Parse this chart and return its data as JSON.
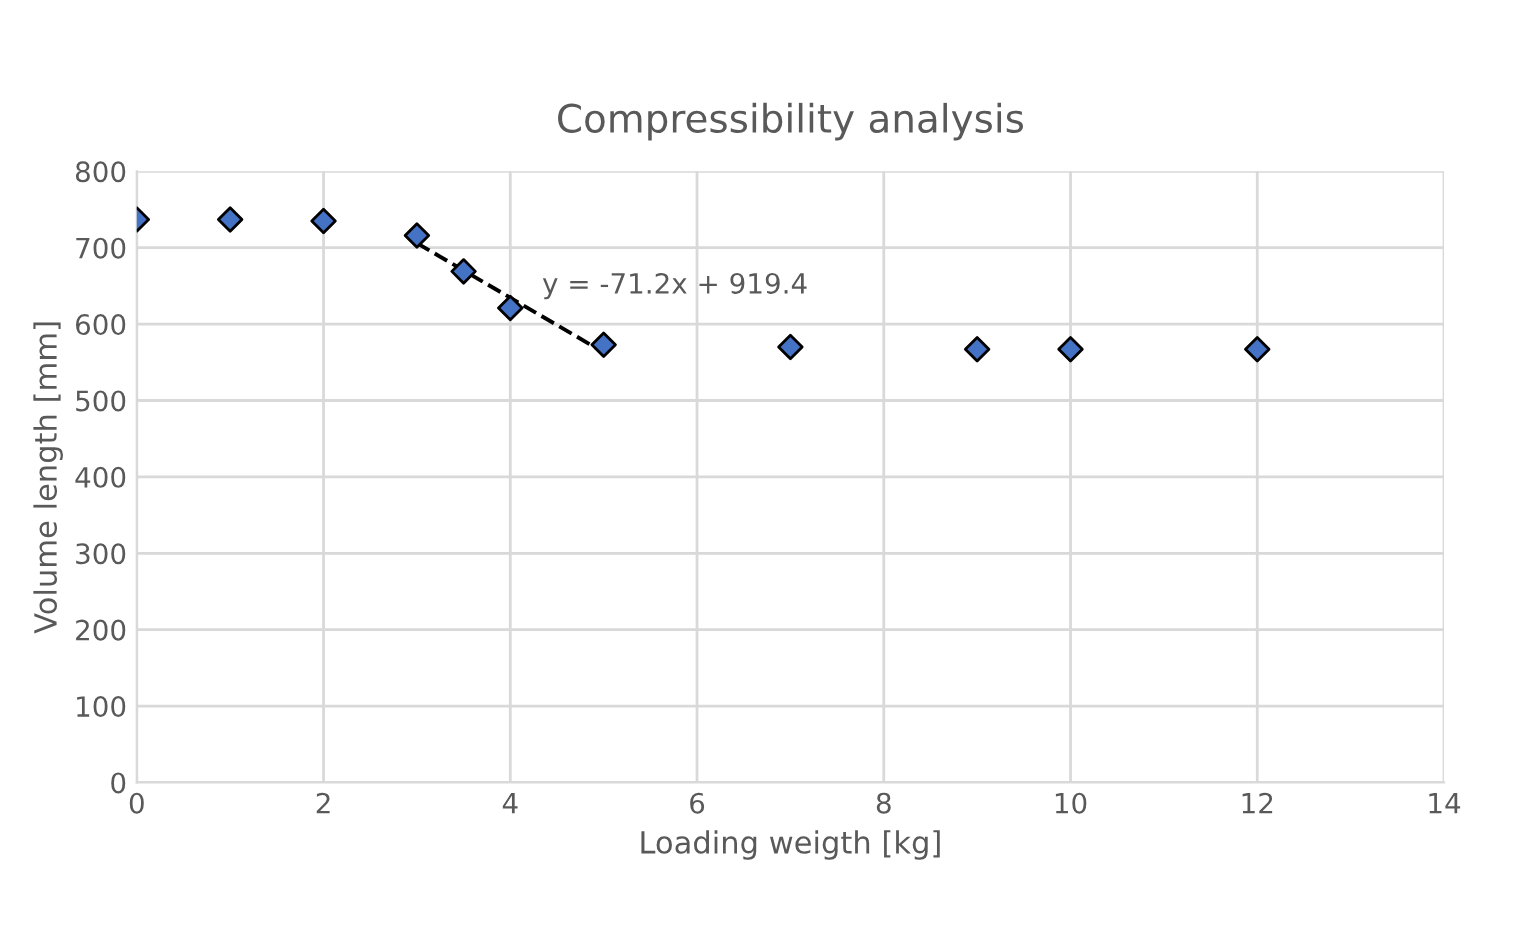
{
  "chart_data": {
    "type": "scatter",
    "title": "Compressibility analysis",
    "xlabel": "Loading weigth [kg]",
    "ylabel": "Volume length [mm]",
    "xlim": [
      0,
      14
    ],
    "xticks": [
      0,
      2,
      4,
      6,
      8,
      10,
      12,
      14
    ],
    "ylim": [
      0,
      800
    ],
    "yticks": [
      0,
      100,
      200,
      300,
      400,
      500,
      600,
      700,
      800
    ],
    "grid": true,
    "series": [
      {
        "marker": "diamond",
        "color": "#4472c4",
        "x": [
          0,
          1,
          2,
          3,
          3.5,
          4,
          5,
          7,
          9,
          10,
          12
        ],
        "values": [
          737,
          737,
          735,
          716,
          669,
          621,
          573,
          570,
          567,
          567,
          567
        ]
      },
      {
        "type": "line",
        "color": "#000000",
        "line_style": "dashed",
        "x": [
          3,
          5
        ],
        "values": [
          706,
          563
        ]
      }
    ],
    "annotations": [
      "y = -71.2x + 919.4"
    ]
  }
}
